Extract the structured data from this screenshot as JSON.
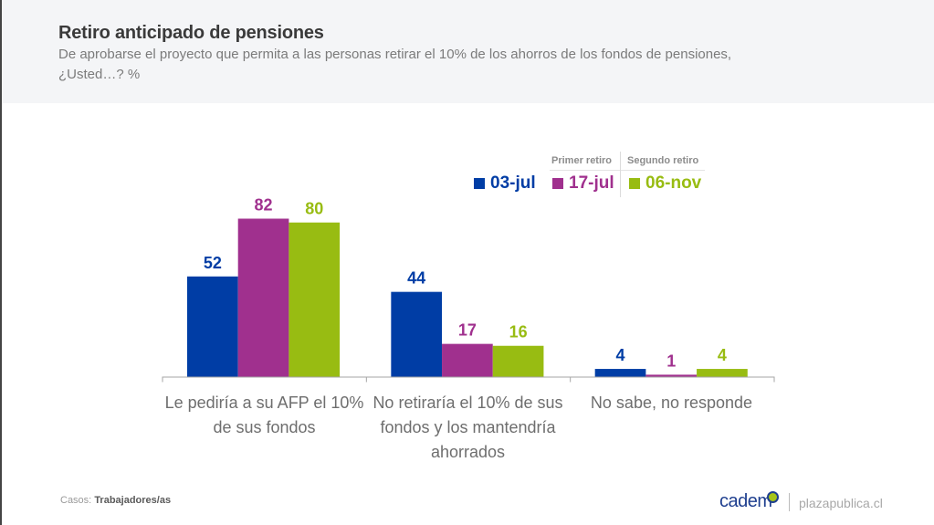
{
  "header": {
    "title": "Retiro anticipado de pensiones",
    "subtitle": "De aprobarse el proyecto que permita a las personas retirar el 10% de los ahorros de los fondos de pensiones, ¿Usted…? %"
  },
  "legend": {
    "groups": [
      "Primer retiro",
      "Segundo retiro"
    ],
    "items": [
      {
        "label": "03-jul",
        "color": "#003da5"
      },
      {
        "label": "17-jul",
        "color": "#a0308e"
      },
      {
        "label": "06-nov",
        "color": "#98bc12"
      }
    ]
  },
  "chart_data": {
    "type": "bar",
    "title": "Retiro anticipado de pensiones",
    "xlabel": "",
    "ylabel": "%",
    "ylim": [
      0,
      90
    ],
    "grid": false,
    "legend_position": "top-right",
    "categories": [
      "Le pediría a su AFP el 10% de sus fondos",
      "No retiraría el 10% de sus fondos y los mantendría ahorrados",
      "No sabe, no responde"
    ],
    "series": [
      {
        "name": "03-jul",
        "color": "#003da5",
        "values": [
          52,
          44,
          4
        ]
      },
      {
        "name": "17-jul",
        "color": "#a0308e",
        "values": [
          82,
          17,
          1
        ]
      },
      {
        "name": "06-nov",
        "color": "#98bc12",
        "values": [
          80,
          16,
          4
        ]
      }
    ]
  },
  "footer": {
    "cases_label": "Casos:",
    "cases_value": "Trabajadores/as",
    "brand": "cadem",
    "site": "plazapublica.cl"
  }
}
